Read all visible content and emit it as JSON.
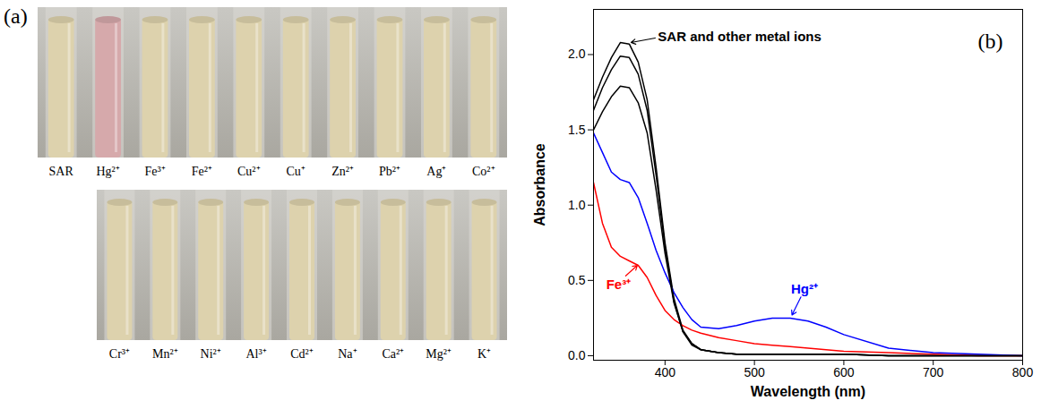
{
  "chart_data": {
    "type": "line",
    "panel_label": "(b)",
    "xlabel": "Wavelength (nm)",
    "ylabel": "Absorbance",
    "xlim": [
      320,
      800
    ],
    "xticks": [
      400,
      500,
      600,
      700,
      800
    ],
    "ylim": [
      -0.03,
      2.3
    ],
    "yticks": [
      {
        "value": 0,
        "label": "0.0"
      },
      {
        "value": 0.5,
        "label": "0.5"
      },
      {
        "value": 1,
        "label": "1.0"
      },
      {
        "value": 1.5,
        "label": "1.5"
      },
      {
        "value": 2,
        "label": "2.0"
      }
    ],
    "grid": false,
    "x": [
      320,
      330,
      340,
      350,
      360,
      370,
      380,
      390,
      400,
      410,
      420,
      430,
      440,
      460,
      480,
      500,
      520,
      540,
      560,
      580,
      600,
      650,
      700,
      750,
      800
    ],
    "series": [
      {
        "name": "SAR and other metal ions",
        "color": "#000000",
        "values": [
          1.7,
          1.85,
          1.98,
          2.08,
          2.07,
          1.95,
          1.7,
          1.25,
          0.75,
          0.38,
          0.17,
          0.08,
          0.04,
          0.02,
          0.01,
          0.01,
          0.01,
          0.01,
          0.01,
          0.01,
          0.01,
          0,
          0,
          0,
          0
        ]
      },
      {
        "name": "Fe³⁺",
        "color": "#ff0000",
        "values": [
          1.15,
          0.88,
          0.72,
          0.66,
          0.63,
          0.6,
          0.52,
          0.4,
          0.3,
          0.24,
          0.2,
          0.17,
          0.15,
          0.12,
          0.1,
          0.08,
          0.07,
          0.06,
          0.05,
          0.04,
          0.03,
          0.02,
          0.01,
          0,
          0
        ]
      },
      {
        "name": "Hg²⁺",
        "color": "#0000ff",
        "values": [
          1.48,
          1.35,
          1.22,
          1.17,
          1.15,
          1.05,
          0.88,
          0.7,
          0.55,
          0.42,
          0.32,
          0.24,
          0.19,
          0.18,
          0.2,
          0.23,
          0.25,
          0.25,
          0.23,
          0.19,
          0.14,
          0.05,
          0.02,
          0.01,
          0
        ]
      },
      {
        "color": "#000000",
        "values": [
          1.63,
          1.78,
          1.9,
          1.99,
          1.98,
          1.87,
          1.63,
          1.2,
          0.72,
          0.36,
          0.16,
          0.08,
          0.04,
          0.02,
          0.01,
          0.01,
          0.01,
          0.01,
          0.01,
          0.01,
          0.01,
          0,
          0,
          0,
          0
        ]
      },
      {
        "color": "#000000",
        "values": [
          1.5,
          1.62,
          1.72,
          1.79,
          1.78,
          1.68,
          1.48,
          1.1,
          0.68,
          0.35,
          0.16,
          0.07,
          0.04,
          0.02,
          0.01,
          0.01,
          0.01,
          0.01,
          0.01,
          0.01,
          0.01,
          0,
          0,
          0,
          0
        ]
      }
    ]
  },
  "photo": {
    "panel_label": "(a)",
    "rows": [
      [
        {
          "label": "SAR",
          "color": "#ddd2ad"
        },
        {
          "label": "Hg²⁺",
          "color": "#d6a9ab"
        },
        {
          "label": "Fe³⁺",
          "color": "#ddd2ad"
        },
        {
          "label": "Fe²⁺",
          "color": "#ddd2ad"
        },
        {
          "label": "Cu²⁺",
          "color": "#ddd2ad"
        },
        {
          "label": "Cu⁺",
          "color": "#ddd2ad"
        },
        {
          "label": "Zn²⁺",
          "color": "#ddd2ad"
        },
        {
          "label": "Pb²⁺",
          "color": "#ddd2ad"
        },
        {
          "label": "Ag⁺",
          "color": "#ddd2ad"
        },
        {
          "label": "Co²⁺",
          "color": "#ddd2ad"
        }
      ],
      [
        {
          "label": "Cr³⁺",
          "color": "#ddd2ad"
        },
        {
          "label": "Mn²⁺",
          "color": "#ddd2ad"
        },
        {
          "label": "Ni²⁺",
          "color": "#ddd2ad"
        },
        {
          "label": "Al³⁺",
          "color": "#ddd2ad"
        },
        {
          "label": "Cd²⁺",
          "color": "#ddd2ad"
        },
        {
          "label": "Na⁺",
          "color": "#ddd2ad"
        },
        {
          "label": "Ca²⁺",
          "color": "#ddd2ad"
        },
        {
          "label": "Mg²⁺",
          "color": "#ddd2ad"
        },
        {
          "label": "K⁺",
          "color": "#ddd2ad"
        }
      ]
    ]
  }
}
